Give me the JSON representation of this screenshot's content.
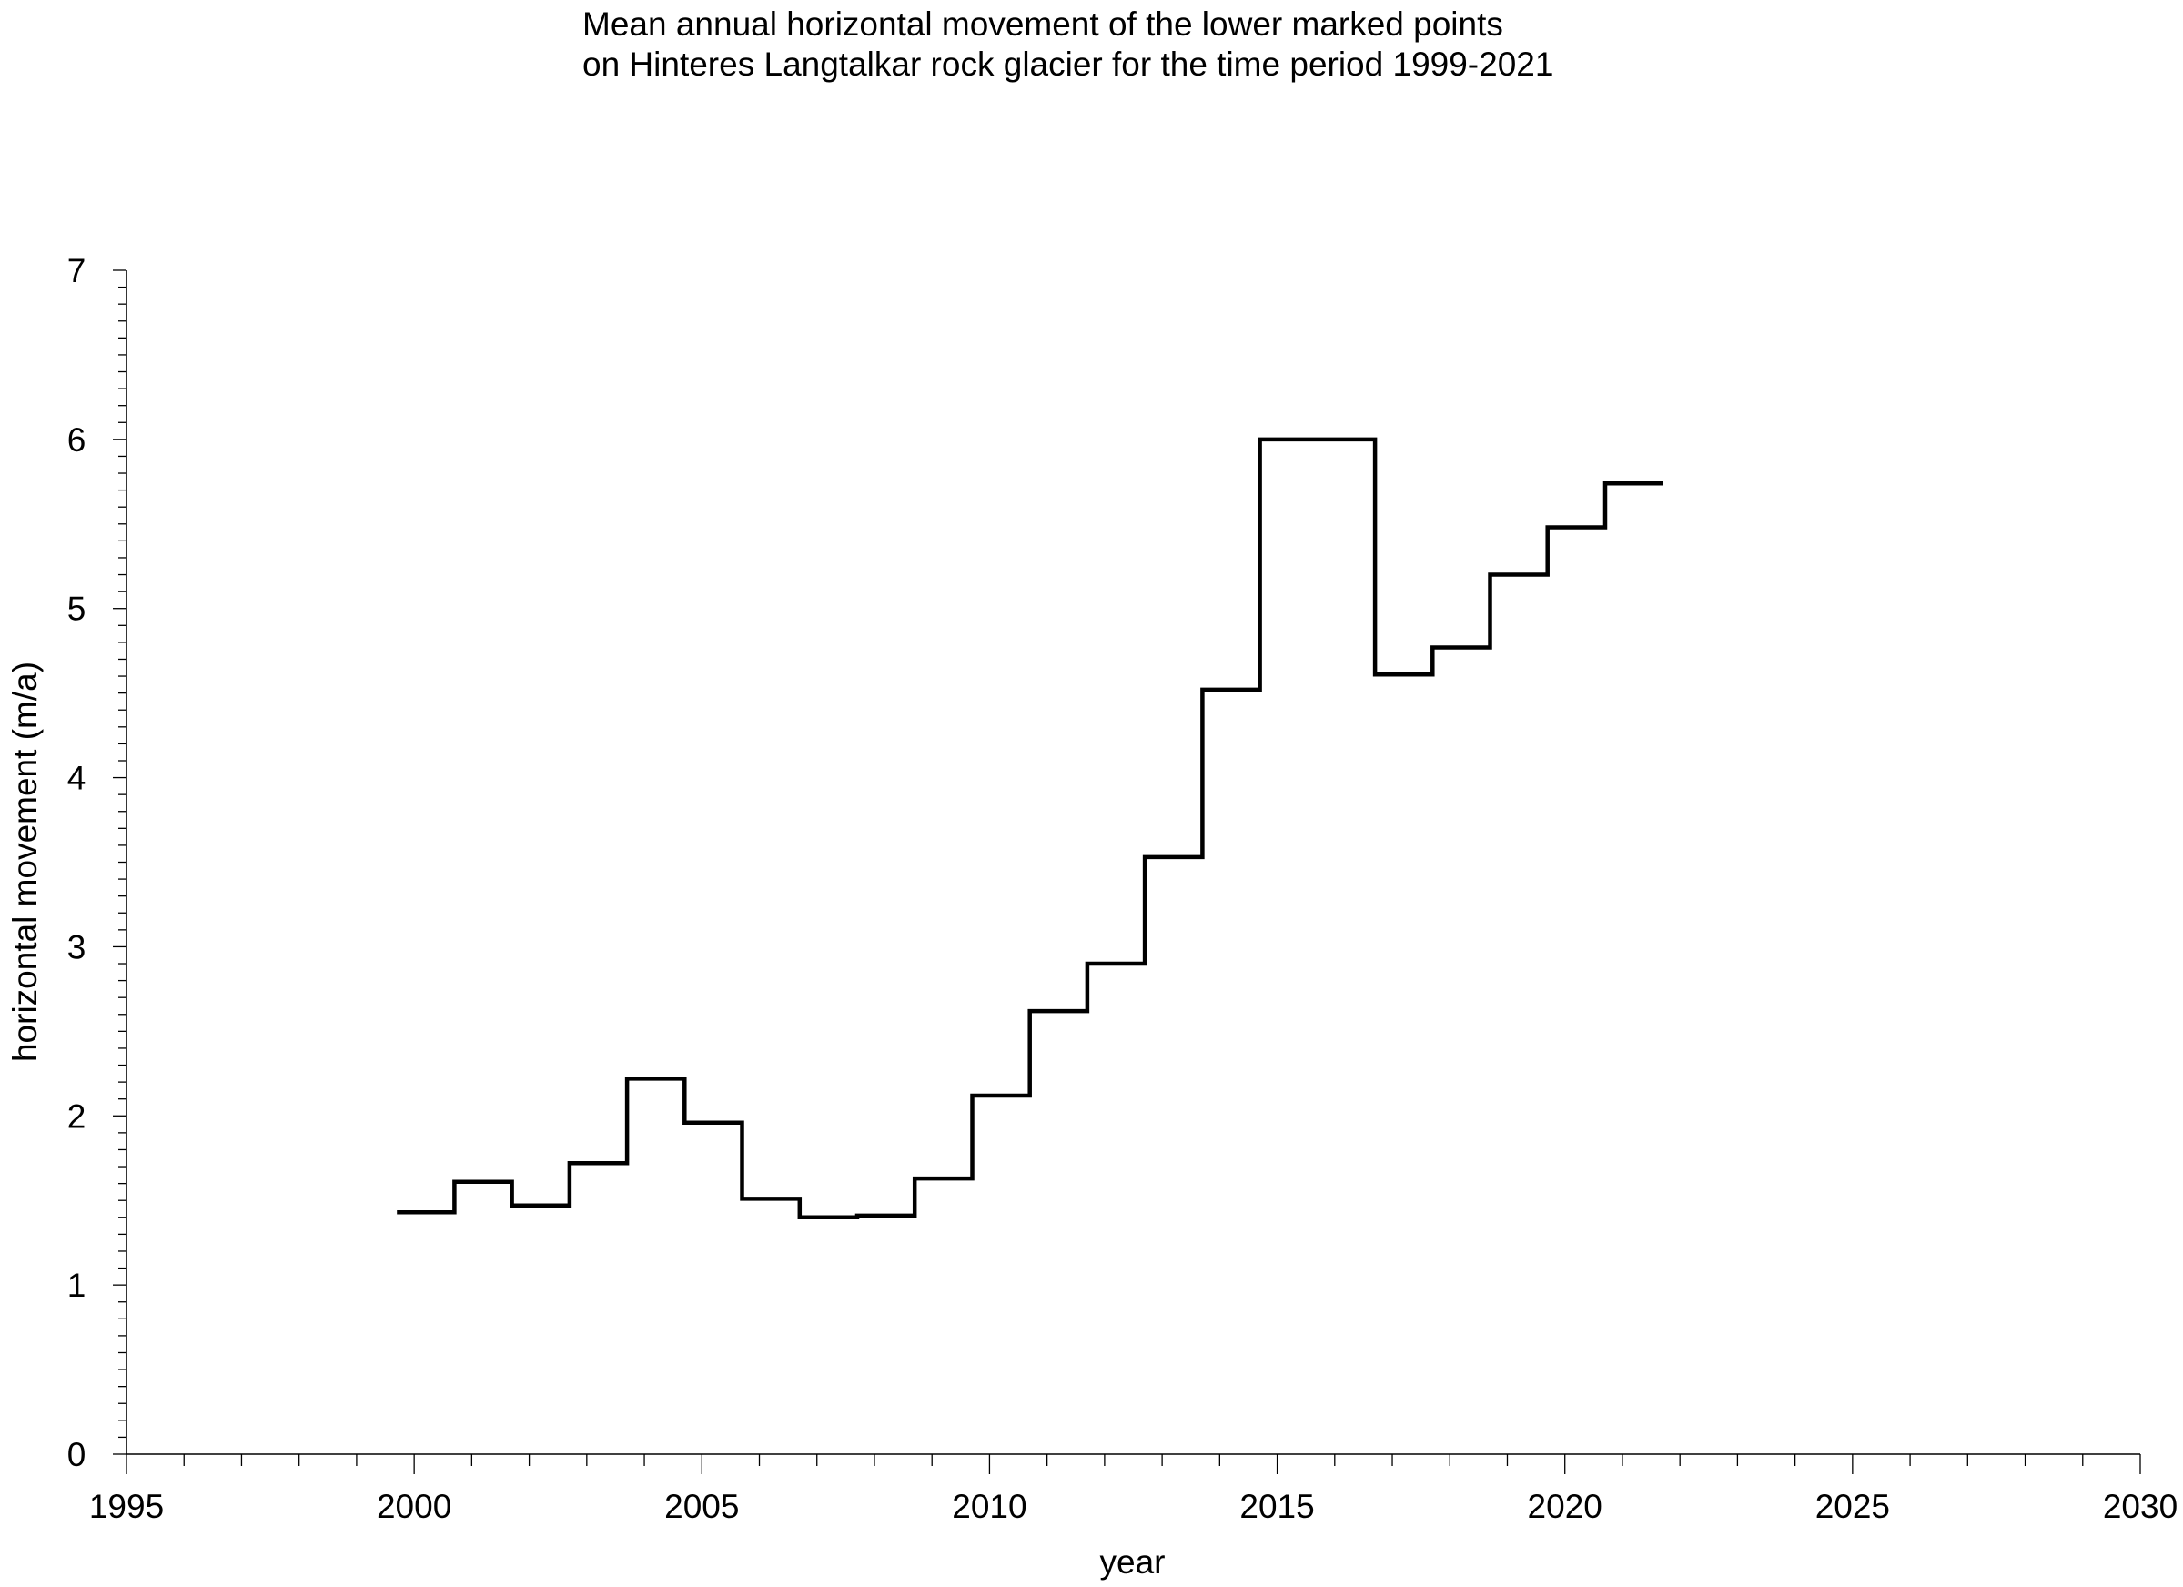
{
  "chart_data": {
    "type": "line",
    "style": "step",
    "title": "Mean annual horizontal movement of the lower marked points",
    "subtitle": "on Hinteres Langtalkar rock glacier for the time period 1999-2021",
    "xlabel": "year",
    "ylabel": "horizontal movement (m/a)",
    "xlim": [
      1995,
      2030
    ],
    "ylim": [
      0,
      7
    ],
    "xticks": [
      1995,
      2000,
      2005,
      2010,
      2015,
      2020,
      2025,
      2030
    ],
    "yticks": [
      0,
      1,
      2,
      3,
      4,
      5,
      6,
      7
    ],
    "grid": false,
    "line_color": "#000000",
    "series": [
      {
        "steps": [
          {
            "from": 1999.7,
            "to": 2000.7,
            "value": 1.43
          },
          {
            "from": 2000.7,
            "to": 2001.7,
            "value": 1.61
          },
          {
            "from": 2001.7,
            "to": 2002.7,
            "value": 1.47
          },
          {
            "from": 2002.7,
            "to": 2003.7,
            "value": 1.72
          },
          {
            "from": 2003.7,
            "to": 2004.7,
            "value": 2.22
          },
          {
            "from": 2004.7,
            "to": 2005.7,
            "value": 1.96
          },
          {
            "from": 2005.7,
            "to": 2006.7,
            "value": 1.51
          },
          {
            "from": 2006.7,
            "to": 2007.7,
            "value": 1.4
          },
          {
            "from": 2007.7,
            "to": 2008.7,
            "value": 1.41
          },
          {
            "from": 2008.7,
            "to": 2009.7,
            "value": 1.63
          },
          {
            "from": 2009.7,
            "to": 2010.7,
            "value": 2.12
          },
          {
            "from": 2010.7,
            "to": 2011.7,
            "value": 2.62
          },
          {
            "from": 2011.7,
            "to": 2012.7,
            "value": 2.9
          },
          {
            "from": 2012.7,
            "to": 2013.7,
            "value": 3.53
          },
          {
            "from": 2013.7,
            "to": 2014.7,
            "value": 4.52
          },
          {
            "from": 2014.7,
            "to": 2015.7,
            "value": 6.0
          },
          {
            "from": 2015.7,
            "to": 2016.7,
            "value": 6.0
          },
          {
            "from": 2016.7,
            "to": 2017.7,
            "value": 4.61
          },
          {
            "from": 2017.7,
            "to": 2018.7,
            "value": 4.77
          },
          {
            "from": 2018.7,
            "to": 2019.7,
            "value": 5.2
          },
          {
            "from": 2019.7,
            "to": 2020.7,
            "value": 5.48
          },
          {
            "from": 2020.7,
            "to": 2021.7,
            "value": 5.74
          }
        ]
      }
    ]
  }
}
